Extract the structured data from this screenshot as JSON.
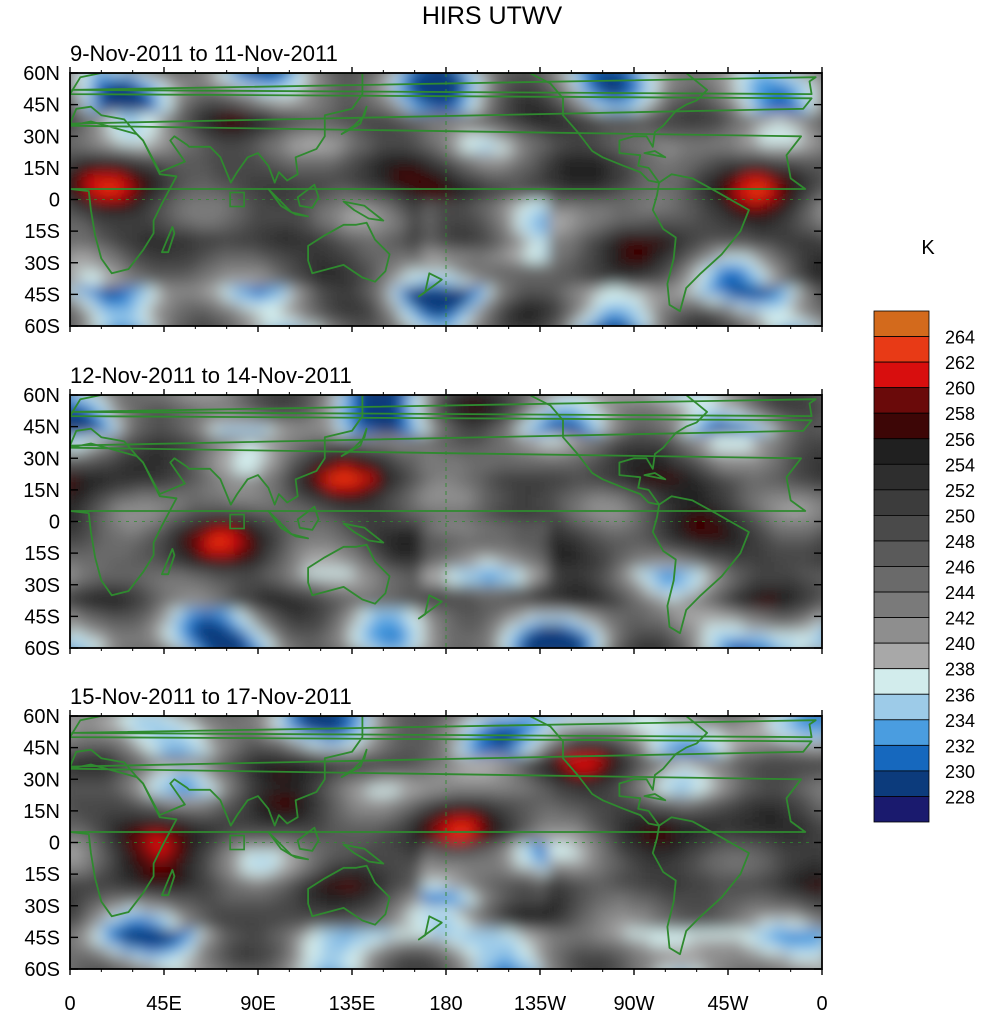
{
  "title": "HIRS UTWV",
  "panels": [
    {
      "period": "9-Nov-2011 to 11-Nov-2011"
    },
    {
      "period": "12-Nov-2011 to 14-Nov-2011"
    },
    {
      "period": "15-Nov-2011 to 17-Nov-2011"
    }
  ],
  "axes": {
    "lat_labels": [
      "60N",
      "45N",
      "30N",
      "15N",
      "0",
      "15S",
      "30S",
      "45S",
      "60S"
    ],
    "lon_labels": [
      "0",
      "45E",
      "90E",
      "135E",
      "180",
      "135W",
      "90W",
      "45W",
      "0"
    ]
  },
  "colorbar": {
    "unit": "K",
    "levels": [
      228,
      230,
      232,
      234,
      236,
      238,
      240,
      242,
      244,
      246,
      248,
      250,
      252,
      254,
      256,
      258,
      260,
      262,
      264
    ],
    "colors": [
      "#1a1a6e",
      "#0c3b7c",
      "#1668be",
      "#4a9de0",
      "#9dcbe8",
      "#d2ecec",
      "#a8a8a8",
      "#8e8e8e",
      "#7a7a7a",
      "#6a6a6a",
      "#5a5a5a",
      "#4a4a4a",
      "#3c3c3c",
      "#2e2e2e",
      "#202020",
      "#3d0606",
      "#6a0a0a",
      "#d80e0e",
      "#e83a16",
      "#d36a1c"
    ]
  },
  "coastline_color": "#2f8a2f"
}
